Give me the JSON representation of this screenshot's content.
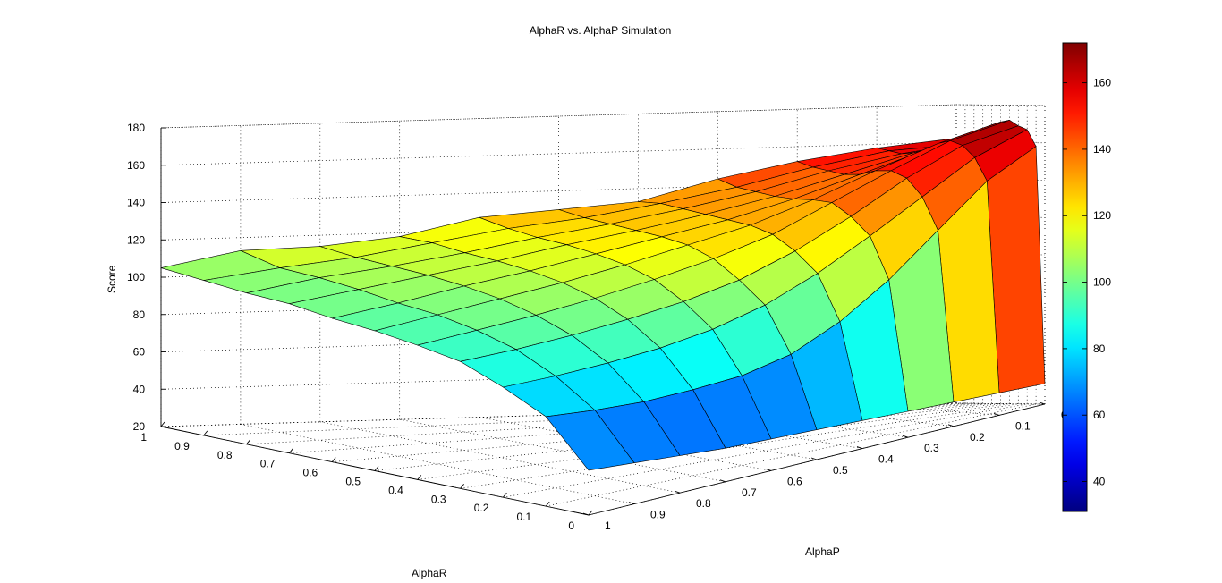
{
  "chart_data": {
    "type": "surface",
    "title": "AlphaR vs. AlphaP Simulation",
    "xlabel": "AlphaR",
    "ylabel": "AlphaP",
    "zlabel": "Score",
    "x": [
      1,
      0.9,
      0.8,
      0.7,
      0.6,
      0.5,
      0.4,
      0.3,
      0.2,
      0.1,
      0
    ],
    "y": [
      1,
      0.9,
      0.8,
      0.7,
      0.6,
      0.5,
      0.4,
      0.3,
      0.2,
      0.1,
      0
    ],
    "x_ticks": [
      "1",
      "0.9",
      "0.8",
      "0.7",
      "0.6",
      "0.5",
      "0.4",
      "0.3",
      "0.2",
      "0.1",
      "0"
    ],
    "y_ticks": [
      "1",
      "0.9",
      "0.8",
      "0.7",
      "0.6",
      "0.5",
      "0.4",
      "0.3",
      "0.2",
      "0.1",
      "0"
    ],
    "z_ticks": [
      "20",
      "40",
      "60",
      "80",
      "100",
      "120",
      "140",
      "160",
      "180"
    ],
    "zlim": [
      20,
      180
    ],
    "colorbar": {
      "colormap": "jet",
      "range": [
        31,
        172
      ],
      "ticks": [
        "40",
        "60",
        "80",
        "100",
        "120",
        "140",
        "160"
      ],
      "tick_values": [
        40,
        60,
        80,
        100,
        120,
        140,
        160
      ]
    },
    "grid": true,
    "z": [
      [
        105,
        113,
        114,
        118,
        127,
        130,
        133,
        144,
        152,
        158,
        162
      ],
      [
        103,
        108,
        112,
        118,
        124,
        128,
        134,
        141,
        150,
        157,
        159
      ],
      [
        101,
        107,
        111,
        116,
        122,
        127,
        133,
        140,
        149,
        156,
        160
      ],
      [
        100,
        105,
        110,
        115,
        121,
        126,
        132,
        139,
        148,
        157,
        163
      ],
      [
        97,
        102,
        108,
        113,
        119,
        125,
        131,
        139,
        149,
        159,
        168
      ],
      [
        95,
        100,
        105,
        110,
        116,
        123,
        130,
        140,
        152,
        163,
        171
      ],
      [
        92,
        96,
        100,
        105,
        111,
        118,
        127,
        140,
        153,
        165,
        172
      ],
      [
        88,
        90,
        93,
        97,
        102,
        109,
        120,
        134,
        150,
        163,
        169
      ],
      [
        79,
        80,
        82,
        85,
        90,
        98,
        110,
        125,
        141,
        157,
        167
      ],
      [
        68,
        66,
        65,
        66,
        68,
        74,
        86,
        103,
        124,
        145,
        158
      ],
      [
        44,
        42,
        40,
        38,
        37,
        36,
        35,
        34,
        33,
        32,
        31
      ]
    ]
  }
}
